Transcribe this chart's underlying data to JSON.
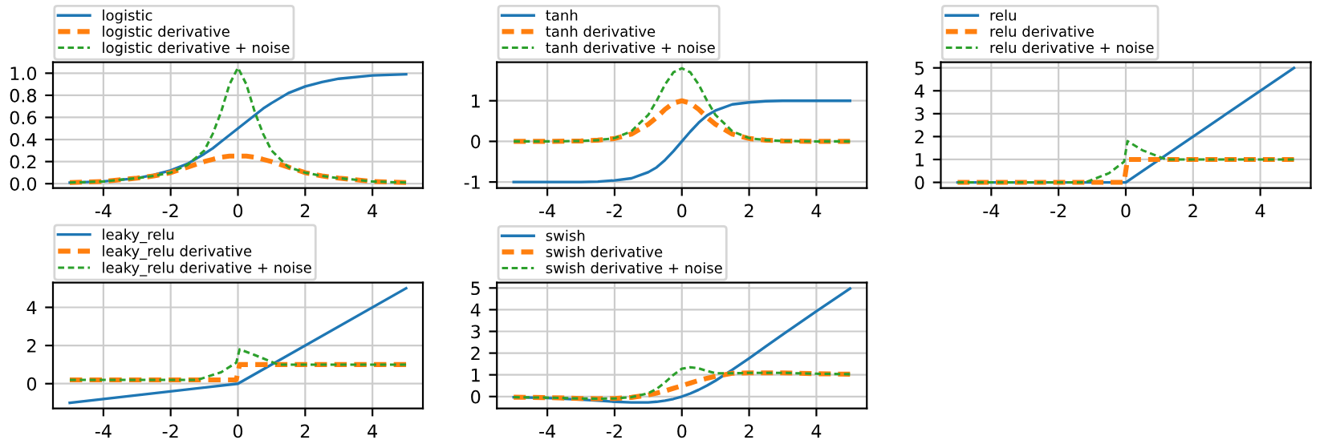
{
  "chart_data": [
    {
      "type": "line",
      "xlim": [
        -5.5,
        5.5
      ],
      "xticks": [
        -4,
        -2,
        0,
        2,
        4
      ],
      "ylim": [
        -0.04,
        1.1
      ],
      "yticks": [
        {
          "value": 0,
          "label": "0.0"
        },
        0.2,
        0.4,
        0.6,
        0.8,
        {
          "value": 1,
          "label": "1.0"
        }
      ],
      "grid": true,
      "legend": "top",
      "series": [
        {
          "name": "logistic",
          "color": "#1f77b4",
          "line_style": "solid",
          "x": [
            -5,
            -4,
            -3,
            -2.5,
            -2,
            -1.5,
            -1,
            -0.75,
            -0.5,
            -0.25,
            0,
            0.25,
            0.5,
            0.75,
            1,
            1.5,
            2,
            2.5,
            3,
            4,
            5
          ],
          "values": [
            0.01,
            0.02,
            0.05,
            0.08,
            0.12,
            0.18,
            0.27,
            0.32,
            0.38,
            0.44,
            0.5,
            0.56,
            0.62,
            0.68,
            0.73,
            0.82,
            0.88,
            0.92,
            0.95,
            0.98,
            0.99
          ]
        },
        {
          "name": "logistic derivative",
          "color": "#ff7f0e",
          "line_style": "dashed",
          "x": [
            -5,
            -4,
            -3,
            -2.5,
            -2,
            -1.5,
            -1,
            -0.75,
            -0.5,
            -0.25,
            0,
            0.25,
            0.5,
            0.75,
            1,
            1.5,
            2,
            2.5,
            3,
            4,
            5
          ],
          "values": [
            0.01,
            0.02,
            0.05,
            0.07,
            0.1,
            0.15,
            0.2,
            0.22,
            0.24,
            0.25,
            0.25,
            0.25,
            0.24,
            0.22,
            0.2,
            0.15,
            0.1,
            0.07,
            0.05,
            0.02,
            0.01
          ]
        },
        {
          "name": "logistic derivative + noise",
          "color": "#2ca02c",
          "line_style": "dashed",
          "x": [
            -5,
            -4,
            -3,
            -2.5,
            -2,
            -1.5,
            -1,
            -0.75,
            -0.5,
            -0.25,
            0,
            0.25,
            0.5,
            0.75,
            1,
            1.5,
            2,
            2.5,
            3,
            4,
            5
          ],
          "values": [
            0.01,
            0.02,
            0.05,
            0.07,
            0.1,
            0.17,
            0.3,
            0.45,
            0.65,
            0.9,
            1.05,
            0.9,
            0.65,
            0.45,
            0.3,
            0.15,
            0.1,
            0.07,
            0.05,
            0.02,
            0.01
          ]
        }
      ]
    },
    {
      "type": "line",
      "xlim": [
        -5.5,
        5.5
      ],
      "xticks": [
        -4,
        -2,
        0,
        2,
        4
      ],
      "ylim": [
        -1.15,
        1.95
      ],
      "yticks": [
        -1,
        0,
        1
      ],
      "grid": true,
      "legend": "top",
      "series": [
        {
          "name": "tanh",
          "color": "#1f77b4",
          "line_style": "solid",
          "x": [
            -5,
            -4,
            -3,
            -2.5,
            -2,
            -1.5,
            -1,
            -0.75,
            -0.5,
            -0.25,
            0,
            0.25,
            0.5,
            0.75,
            1,
            1.5,
            2,
            2.5,
            3,
            4,
            5
          ],
          "values": [
            -1,
            -1,
            -1,
            -0.99,
            -0.96,
            -0.91,
            -0.76,
            -0.64,
            -0.46,
            -0.24,
            0,
            0.24,
            0.46,
            0.64,
            0.76,
            0.91,
            0.96,
            0.99,
            1,
            1,
            1
          ]
        },
        {
          "name": "tanh derivative",
          "color": "#ff7f0e",
          "line_style": "dashed",
          "x": [
            -5,
            -4,
            -3,
            -2.5,
            -2,
            -1.5,
            -1,
            -0.75,
            -0.5,
            -0.25,
            0,
            0.25,
            0.5,
            0.75,
            1,
            1.5,
            2,
            2.5,
            3,
            4,
            5
          ],
          "values": [
            0,
            0,
            0.01,
            0.03,
            0.07,
            0.18,
            0.42,
            0.59,
            0.79,
            0.94,
            1,
            0.94,
            0.79,
            0.59,
            0.42,
            0.18,
            0.07,
            0.03,
            0.01,
            0,
            0
          ]
        },
        {
          "name": "tanh derivative + noise",
          "color": "#2ca02c",
          "line_style": "dashed",
          "x": [
            -5,
            -4,
            -3,
            -2.5,
            -2,
            -1.5,
            -1,
            -0.75,
            -0.5,
            -0.25,
            0,
            0.25,
            0.5,
            0.75,
            1,
            1.5,
            2,
            2.5,
            3,
            4,
            5
          ],
          "values": [
            0,
            0,
            0.01,
            0.03,
            0.08,
            0.25,
            0.65,
            1.0,
            1.4,
            1.7,
            1.8,
            1.7,
            1.4,
            1.0,
            0.65,
            0.25,
            0.08,
            0.03,
            0.01,
            0,
            0
          ]
        }
      ]
    },
    {
      "type": "line",
      "xlim": [
        -5.5,
        5.5
      ],
      "xticks": [
        -4,
        -2,
        0,
        2,
        4
      ],
      "ylim": [
        -0.25,
        5.25
      ],
      "yticks": [
        0,
        1,
        2,
        3,
        4,
        5
      ],
      "grid": true,
      "legend": "top",
      "series": [
        {
          "name": "relu",
          "color": "#1f77b4",
          "line_style": "solid",
          "x": [
            -5,
            0,
            5
          ],
          "values": [
            0,
            0,
            5
          ]
        },
        {
          "name": "relu derivative",
          "color": "#ff7f0e",
          "line_style": "dashed",
          "x": [
            -5,
            -0.05,
            0.05,
            5
          ],
          "values": [
            0,
            0,
            1,
            1
          ]
        },
        {
          "name": "relu derivative + noise",
          "color": "#2ca02c",
          "line_style": "dashed",
          "x": [
            -5,
            -1.2,
            -0.5,
            -0.05,
            0.05,
            0.5,
            1.2,
            5
          ],
          "values": [
            0,
            0,
            0.4,
            0.9,
            1.8,
            1.4,
            1,
            1
          ]
        }
      ]
    },
    {
      "type": "line",
      "xlim": [
        -5.5,
        5.5
      ],
      "xticks": [
        -4,
        -2,
        0,
        2,
        4
      ],
      "ylim": [
        -1.3,
        5.3
      ],
      "yticks": [
        0,
        2,
        4
      ],
      "grid": true,
      "legend": "top",
      "series": [
        {
          "name": "leaky_relu",
          "color": "#1f77b4",
          "line_style": "solid",
          "x": [
            -5,
            0,
            5
          ],
          "values": [
            -1,
            0,
            5
          ]
        },
        {
          "name": "leaky_relu derivative",
          "color": "#ff7f0e",
          "line_style": "dashed",
          "x": [
            -5,
            -0.05,
            0.05,
            5
          ],
          "values": [
            0.2,
            0.2,
            1,
            1
          ]
        },
        {
          "name": "leaky_relu derivative + noise",
          "color": "#2ca02c",
          "line_style": "dashed",
          "x": [
            -5,
            -1.2,
            -0.5,
            -0.05,
            0.05,
            0.5,
            1.2,
            5
          ],
          "values": [
            0.2,
            0.2,
            0.6,
            1.1,
            1.8,
            1.5,
            1,
            1
          ]
        }
      ]
    },
    {
      "type": "line",
      "xlim": [
        -5.5,
        5.5
      ],
      "xticks": [
        -4,
        -2,
        0,
        2,
        4
      ],
      "ylim": [
        -0.55,
        5.25
      ],
      "yticks": [
        0,
        1,
        2,
        3,
        4,
        5
      ],
      "grid": true,
      "legend": "top",
      "series": [
        {
          "name": "swish",
          "color": "#1f77b4",
          "line_style": "solid",
          "x": [
            -5,
            -4,
            -3,
            -2.5,
            -2,
            -1.5,
            -1,
            -0.75,
            -0.5,
            -0.25,
            0,
            0.25,
            0.5,
            0.75,
            1,
            1.5,
            2,
            2.5,
            3,
            4,
            5
          ],
          "values": [
            -0.03,
            -0.07,
            -0.14,
            -0.19,
            -0.24,
            -0.27,
            -0.27,
            -0.24,
            -0.19,
            -0.11,
            0,
            0.14,
            0.31,
            0.51,
            0.73,
            1.23,
            1.76,
            2.31,
            2.86,
            3.93,
            4.97
          ]
        },
        {
          "name": "swish derivative",
          "color": "#ff7f0e",
          "line_style": "dashed",
          "x": [
            -5,
            -4,
            -3,
            -2.5,
            -2,
            -1.5,
            -1,
            -0.75,
            -0.5,
            -0.25,
            0,
            0.25,
            0.5,
            0.75,
            1,
            1.5,
            2,
            2.5,
            3,
            4,
            5
          ],
          "values": [
            -0.03,
            -0.05,
            -0.09,
            -0.1,
            -0.09,
            -0.04,
            0.07,
            0.16,
            0.26,
            0.38,
            0.5,
            0.62,
            0.74,
            0.84,
            0.93,
            1.07,
            1.09,
            1.09,
            1.09,
            1.05,
            1.03
          ]
        },
        {
          "name": "swish derivative + noise",
          "color": "#2ca02c",
          "line_style": "dashed",
          "x": [
            -5,
            -4,
            -3,
            -2.5,
            -2,
            -1.5,
            -1,
            -0.75,
            -0.5,
            -0.25,
            0,
            0.25,
            0.5,
            0.75,
            1,
            1.5,
            2,
            2.5,
            3,
            4,
            5
          ],
          "values": [
            -0.03,
            -0.05,
            -0.09,
            -0.1,
            -0.09,
            -0.03,
            0.15,
            0.35,
            0.65,
            1.0,
            1.28,
            1.35,
            1.3,
            1.18,
            1.07,
            1.07,
            1.09,
            1.09,
            1.09,
            1.05,
            1.03
          ]
        }
      ]
    }
  ]
}
